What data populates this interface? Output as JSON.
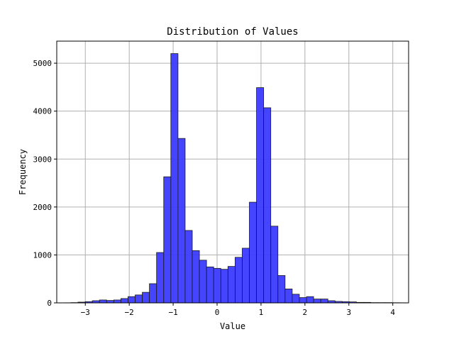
{
  "chart_data": {
    "type": "bar",
    "title": "Distribution of Values",
    "xlabel": "Value",
    "ylabel": "Frequency",
    "xlim": [
      -3.65,
      4.36
    ],
    "ylim": [
      0,
      5460
    ],
    "grid": true,
    "bar_color": "#3b3bff",
    "edge_color": "#1a1a1a",
    "bin_width": 0.1625,
    "bin_edges_start": -3.49,
    "values": [
      2,
      5,
      15,
      25,
      45,
      60,
      50,
      60,
      90,
      130,
      165,
      220,
      400,
      1050,
      2630,
      5200,
      3430,
      1510,
      1090,
      890,
      750,
      720,
      700,
      760,
      950,
      1140,
      2100,
      4490,
      4070,
      1600,
      570,
      290,
      180,
      110,
      130,
      80,
      80,
      45,
      30,
      25,
      20,
      10,
      10,
      5,
      5,
      5,
      3,
      2
    ],
    "x_ticks": [
      -3,
      -2,
      -1,
      0,
      1,
      2,
      3,
      4
    ],
    "x_tick_labels": [
      "−3",
      "−2",
      "−1",
      "0",
      "1",
      "2",
      "3",
      "4"
    ],
    "y_ticks": [
      0,
      1000,
      2000,
      3000,
      4000,
      5000
    ],
    "y_tick_labels": [
      "0",
      "1000",
      "2000",
      "3000",
      "4000",
      "5000"
    ]
  }
}
